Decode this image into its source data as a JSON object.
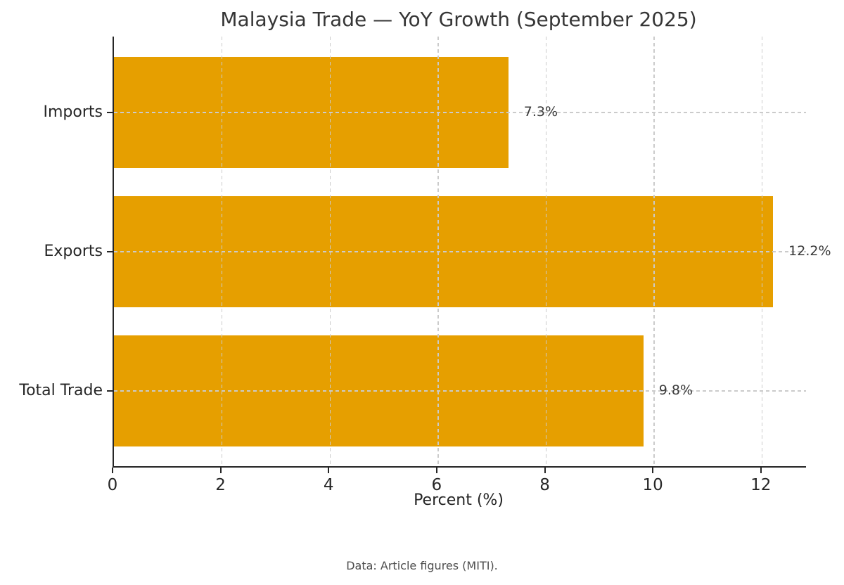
{
  "figure": {
    "footer_note": "Data: Article figures (MITI)."
  },
  "chart_data": {
    "type": "bar",
    "orientation": "horizontal",
    "title": "Malaysia Trade — YoY Growth (September 2025)",
    "categories": [
      "Imports",
      "Exports",
      "Total Trade"
    ],
    "values": [
      7.3,
      12.2,
      9.8
    ],
    "value_labels": [
      "7.3%",
      "12.2%",
      "9.8%"
    ],
    "xlabel": "Percent (%)",
    "ylabel": "",
    "xlim": [
      0,
      12.81
    ],
    "xticks": [
      0,
      2,
      4,
      6,
      8,
      10,
      12
    ],
    "grid": "dashed gridlines on both axes, drawn above bars",
    "legend": "none",
    "bar_color": "#E69F00",
    "spine_color": "#262626",
    "grid_color": "#cbcbcb",
    "text_color": "#262626",
    "value_label_color": "#3a3a3a",
    "footer_color": "#4d4d4d"
  }
}
